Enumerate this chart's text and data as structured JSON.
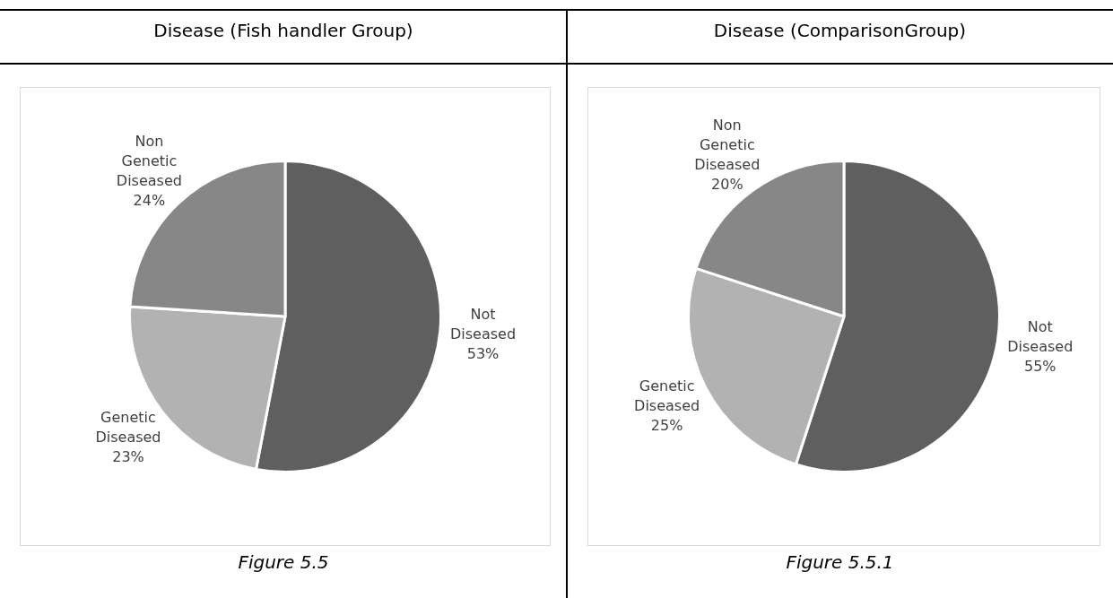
{
  "chart_data": [
    {
      "type": "pie",
      "title": "Disease (Fish handler Group)",
      "categories": [
        "Not Diseased",
        "Genetic Diseased",
        "Non Genetic Diseased"
      ],
      "values": [
        53,
        23,
        24
      ],
      "value_labels": [
        "53%",
        "23%",
        "24%"
      ],
      "colors": [
        "#5f5f5f",
        "#b2b2b2",
        "#878787"
      ],
      "legend": false,
      "annotations": [
        "Figure 5.5"
      ]
    },
    {
      "type": "pie",
      "title": "Disease (ComparisonGroup)",
      "categories": [
        "Not Diseased",
        "Genetic Diseased",
        "Non Genetic Diseased"
      ],
      "values": [
        55,
        25,
        20
      ],
      "value_labels": [
        "55%",
        "25%",
        "20%"
      ],
      "colors": [
        "#5f5f5f",
        "#b2b2b2",
        "#878787"
      ],
      "legend": false,
      "annotations": [
        "Figure 5.5.1"
      ]
    }
  ]
}
